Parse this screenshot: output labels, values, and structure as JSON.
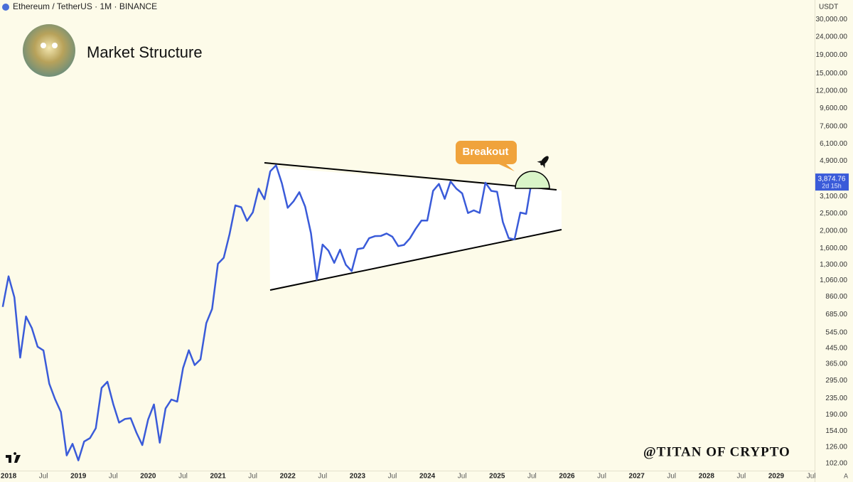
{
  "header": {
    "symbol": "Ethereum / TetherUS · 1M · BINANCE",
    "title": "Market Structure",
    "watermark": "@TITAN OF CRYPTO"
  },
  "chart_data": {
    "type": "line",
    "yscale": "log",
    "grid": false,
    "currency": "USDT",
    "axis_mode": "A",
    "annotation": "Breakout",
    "ylim": [
      93,
      38400
    ],
    "yticks": [
      {
        "value": 30000,
        "label": "30,000.00"
      },
      {
        "value": 24000,
        "label": "24,000.00"
      },
      {
        "value": 19000,
        "label": "19,000.00"
      },
      {
        "value": 15000,
        "label": "15,000.00"
      },
      {
        "value": 12000,
        "label": "12,000.00"
      },
      {
        "value": 9600,
        "label": "9,600.00"
      },
      {
        "value": 7600,
        "label": "7,600.00"
      },
      {
        "value": 6100,
        "label": "6,100.00"
      },
      {
        "value": 4900,
        "label": "4,900.00"
      },
      {
        "value": 3100,
        "label": "3,100.00"
      },
      {
        "value": 2500,
        "label": "2,500.00"
      },
      {
        "value": 2000,
        "label": "2,000.00"
      },
      {
        "value": 1600,
        "label": "1,600.00"
      },
      {
        "value": 1300,
        "label": "1,300.00"
      },
      {
        "value": 1060,
        "label": "1,060.00"
      },
      {
        "value": 860,
        "label": "860.00"
      },
      {
        "value": 685,
        "label": "685.00"
      },
      {
        "value": 545,
        "label": "545.00"
      },
      {
        "value": 445,
        "label": "445.00"
      },
      {
        "value": 365,
        "label": "365.00"
      },
      {
        "value": 295,
        "label": "295.00"
      },
      {
        "value": 235,
        "label": "235.00"
      },
      {
        "value": 190,
        "label": "190.00"
      },
      {
        "value": 154,
        "label": "154.00"
      },
      {
        "value": 126,
        "label": "126.00"
      },
      {
        "value": 102,
        "label": "102.00"
      }
    ],
    "xlim": [
      -1.47,
      138.6
    ],
    "xticks": [
      {
        "value": 0,
        "label": "2018"
      },
      {
        "value": 6,
        "label": "Jul"
      },
      {
        "value": 12,
        "label": "2019"
      },
      {
        "value": 18,
        "label": "Jul"
      },
      {
        "value": 24,
        "label": "2020"
      },
      {
        "value": 30,
        "label": "Jul"
      },
      {
        "value": 36,
        "label": "2021"
      },
      {
        "value": 42,
        "label": "Jul"
      },
      {
        "value": 48,
        "label": "2022"
      },
      {
        "value": 54,
        "label": "Jul"
      },
      {
        "value": 60,
        "label": "2023"
      },
      {
        "value": 66,
        "label": "Jul"
      },
      {
        "value": 72,
        "label": "2024"
      },
      {
        "value": 78,
        "label": "Jul"
      },
      {
        "value": 84,
        "label": "2025"
      },
      {
        "value": 90,
        "label": "Jul"
      },
      {
        "value": 96,
        "label": "2026"
      },
      {
        "value": 102,
        "label": "Jul"
      },
      {
        "value": 108,
        "label": "2027"
      },
      {
        "value": 114,
        "label": "Jul"
      },
      {
        "value": 120,
        "label": "2028"
      },
      {
        "value": 126,
        "label": "Jul"
      },
      {
        "value": 132,
        "label": "2029"
      },
      {
        "value": 138,
        "label": "Jul"
      }
    ],
    "series": [
      {
        "name": "ETHUSDT",
        "color": "#3a5bd9",
        "x": [
          -1,
          0,
          1,
          2,
          3,
          4,
          5,
          6,
          7,
          8,
          9,
          10,
          11,
          12,
          13,
          14,
          15,
          16,
          17,
          18,
          19,
          20,
          21,
          22,
          23,
          24,
          25,
          26,
          27,
          28,
          29,
          30,
          31,
          32,
          33,
          34,
          35,
          36,
          37,
          38,
          39,
          40,
          41,
          42,
          43,
          44,
          45,
          46,
          47,
          48,
          49,
          50,
          51,
          52,
          53,
          54,
          55,
          56,
          57,
          58,
          59,
          60,
          61,
          62,
          63,
          64,
          65,
          66,
          67,
          68,
          69,
          70,
          71,
          72,
          73,
          74,
          75,
          76,
          77,
          78,
          79,
          80,
          81,
          82,
          83,
          84,
          85,
          86,
          87,
          88,
          89,
          90
        ],
        "values": [
          756,
          1118,
          855,
          395,
          669,
          577,
          454,
          433,
          283,
          232,
          197,
          113,
          131,
          106,
          135,
          141,
          160,
          268,
          290,
          218,
          172,
          180,
          182,
          151,
          129,
          179,
          217,
          133,
          206,
          231,
          225,
          345,
          434,
          359,
          386,
          614,
          737,
          1314,
          1418,
          1918,
          2772,
          2707,
          2275,
          2536,
          3433,
          3000,
          4288,
          4631,
          3676,
          2687,
          2920,
          3282,
          2728,
          1941,
          1071,
          1679,
          1553,
          1328,
          1572,
          1295,
          1196,
          1585,
          1605,
          1822,
          1870,
          1874,
          1934,
          1856,
          1646,
          1671,
          1815,
          2052,
          2282,
          2283,
          3340,
          3647,
          3015,
          3762,
          3433,
          3232,
          2513,
          2602,
          2517,
          3705,
          3337,
          3300,
          2237,
          1822,
          1793,
          2528,
          2486,
          3874.76
        ]
      }
    ],
    "price_label": {
      "value": 3874.76,
      "label": "3,874.76",
      "countdown": "2d 15h"
    }
  }
}
